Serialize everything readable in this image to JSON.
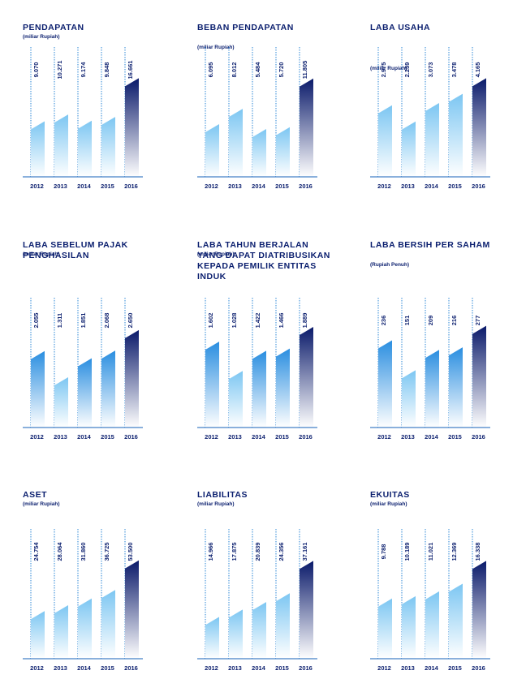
{
  "colors": {
    "title": "#0a1e6e",
    "axis": "#1560b8",
    "dotted": "#2a86d6",
    "highlight_top": "#0a1a6a",
    "normal_top": "#2a8ee0",
    "light_top": "#7cc6f2"
  },
  "chart_data": [
    {
      "type": "bar",
      "title": "PENDAPATAN",
      "subtitle": "(miliar Rupiah)",
      "categories": [
        "2012",
        "2013",
        "2014",
        "2015",
        "2016"
      ],
      "values": [
        9070,
        10271,
        9174,
        9848,
        16661
      ],
      "value_labels": [
        "9.070",
        "10.271",
        "9.174",
        "9.848",
        "16.661"
      ],
      "ylim": [
        0,
        18000
      ]
    },
    {
      "type": "bar",
      "title": "BEBAN PENDAPATAN",
      "subtitle": "(miliar Rupiah)",
      "categories": [
        "2012",
        "2013",
        "2014",
        "2015",
        "2016"
      ],
      "values": [
        6095,
        8012,
        5484,
        5720,
        11805
      ],
      "value_labels": [
        "6.095",
        "8.012",
        "5.484",
        "5.720",
        "11.805"
      ],
      "ylim": [
        0,
        12800
      ]
    },
    {
      "type": "bar",
      "title": "LABA USAHA",
      "subtitle": "(miliar Rupiah)",
      "categories": [
        "2012",
        "2013",
        "2014",
        "2015",
        "2016"
      ],
      "values": [
        2975,
        2259,
        3073,
        3478,
        4165
      ],
      "value_labels": [
        "2.975",
        "2.259",
        "3.073",
        "3.478",
        "4.165"
      ],
      "ylim": [
        0,
        4500
      ]
    },
    {
      "type": "bar",
      "title": "LABA SEBELUM PAJAK\nPENGHASILAN",
      "subtitle": "(miliar Rupiah)",
      "categories": [
        "2012",
        "2013",
        "2014",
        "2015",
        "2016"
      ],
      "values": [
        2055,
        1311,
        1851,
        2068,
        2650
      ],
      "value_labels": [
        "2.055",
        "1.311",
        "1.851",
        "2.068",
        "2.650"
      ],
      "ylim": [
        0,
        2900
      ]
    },
    {
      "type": "bar",
      "title": "LABA TAHUN BERJALAN\nYANG DAPAT DIATRIBUSIKAN\nKEPADA PEMILIK ENTITAS\nINDUK",
      "subtitle": "(miliar Rupiah)",
      "categories": [
        "2012",
        "2013",
        "2014",
        "2015",
        "2016"
      ],
      "values": [
        1602,
        1028,
        1422,
        1466,
        1889
      ],
      "value_labels": [
        "1.602",
        "1.028",
        "1.422",
        "1.466",
        "1.889"
      ],
      "ylim": [
        0,
        2000
      ]
    },
    {
      "type": "bar",
      "title": "LABA BERSIH PER SAHAM",
      "subtitle": "(Rupiah Penuh)",
      "categories": [
        "2012",
        "2013",
        "2014",
        "2015",
        "2016"
      ],
      "values": [
        236,
        151,
        209,
        216,
        277
      ],
      "value_labels": [
        "236",
        "151",
        "209",
        "216",
        "277"
      ],
      "ylim": [
        0,
        290
      ]
    },
    {
      "type": "bar",
      "title": "ASET",
      "subtitle": "(miliar Rupiah)",
      "categories": [
        "2012",
        "2013",
        "2014",
        "2015",
        "2016"
      ],
      "values": [
        24754,
        28064,
        31860,
        36725,
        53500
      ],
      "value_labels": [
        "24.754",
        "28.064",
        "31.860",
        "36.725",
        "53.500"
      ],
      "ylim": [
        0,
        58000
      ]
    },
    {
      "type": "bar",
      "title": "LIABILITAS",
      "subtitle": "(miliar Rupiah)",
      "categories": [
        "2012",
        "2013",
        "2014",
        "2015",
        "2016"
      ],
      "values": [
        14966,
        17875,
        20839,
        24356,
        37161
      ],
      "value_labels": [
        "14.966",
        "17.875",
        "20.839",
        "24.356",
        "37.161"
      ],
      "ylim": [
        0,
        40500
      ]
    },
    {
      "type": "bar",
      "title": "EKUITAS",
      "subtitle": "(miliar Rupiah)",
      "categories": [
        "2012",
        "2013",
        "2014",
        "2015",
        "2016"
      ],
      "values": [
        9788,
        10189,
        11021,
        12369,
        16338
      ],
      "value_labels": [
        "9.788",
        "10.189",
        "11.021",
        "12.369",
        "16.338"
      ],
      "ylim": [
        0,
        17800
      ]
    }
  ]
}
